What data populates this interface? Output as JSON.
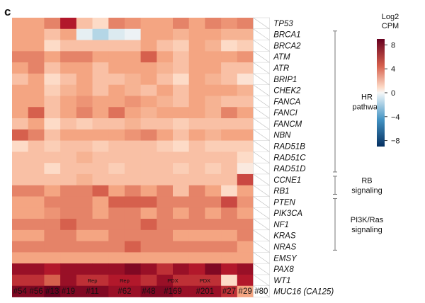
{
  "chart_data": {
    "type": "heatmap",
    "panel_label": "c",
    "genes": [
      "TP53",
      "BRCA1",
      "BRCA2",
      "ATM",
      "ATR",
      "BRIP1",
      "CHEK2",
      "FANCA",
      "FANCI",
      "FANCM",
      "NBN",
      "RAD51B",
      "RAD51C",
      "RAD51D",
      "CCNE1",
      "RB1",
      "PTEN",
      "PIK3CA",
      "NF1",
      "KRAS",
      "NRAS",
      "EMSY",
      "PAX8",
      "WT1",
      "MUC16 (CA125)"
    ],
    "samples": [
      "#54",
      "#56",
      "#13",
      "#19",
      "#11",
      "#11",
      "#62",
      "#62",
      "#48",
      "#169",
      "#169",
      "#201",
      "#201",
      "#27",
      "#29",
      "#80"
    ],
    "sample_labels": [
      "#54",
      "#56",
      "#13",
      "#19",
      "#11",
      "#62",
      "#48",
      "#169",
      "#201",
      "#27",
      "#29",
      "#80"
    ],
    "sample_annotations": [
      "Rep",
      "Rep",
      "PDX",
      "PDX"
    ],
    "groups": [
      {
        "label": "HR pathway",
        "lines": [
          "HR",
          "pathway"
        ],
        "from": "BRCA1",
        "to": "RAD51D"
      },
      {
        "label": "RB signaling",
        "lines": [
          "RB",
          "signaling"
        ],
        "from": "CCNE1",
        "to": "RB1"
      },
      {
        "label": "PI3K/Ras signaling",
        "lines": [
          "PI3K/Ras",
          "signaling"
        ],
        "from": "PTEN",
        "to": "NRAS"
      }
    ],
    "colorbar": {
      "title_lines": [
        "Log2",
        "CPM"
      ],
      "ticks": [
        8,
        4,
        0,
        -4,
        -8
      ],
      "vmin": -9,
      "vmax": 9
    },
    "colors": {
      "high": "#67001f",
      "mid": "#f7f7f7",
      "low": "#053061"
    },
    "values": [
      [
        4,
        4,
        5,
        7.5,
        3,
        2,
        5,
        4.5,
        4,
        4,
        5,
        4,
        5,
        4.5,
        5,
        null
      ],
      [
        4,
        4,
        3,
        4,
        -0.5,
        -2,
        -0.8,
        -0.3,
        4,
        4,
        3.5,
        4,
        4,
        3.5,
        3.5,
        null
      ],
      [
        4,
        4,
        2,
        3,
        3,
        3,
        3,
        3,
        4,
        3,
        2.5,
        4,
        3.5,
        2,
        2.5,
        null
      ],
      [
        5,
        5,
        4,
        5,
        5,
        4,
        4,
        4,
        6,
        4,
        3,
        4,
        4,
        4,
        4.5,
        null
      ],
      [
        4,
        5,
        3,
        4,
        4,
        3,
        4,
        4,
        4,
        3.5,
        3,
        4,
        4,
        3,
        3,
        null
      ],
      [
        3,
        4,
        2,
        3,
        4,
        3,
        3,
        3.5,
        4,
        3,
        2,
        4,
        3.5,
        3,
        1.5,
        null
      ],
      [
        4,
        4,
        2.5,
        3.5,
        4,
        3,
        4,
        3.5,
        3,
        4,
        3,
        4,
        4,
        4,
        3.5,
        null
      ],
      [
        4,
        4,
        3,
        4,
        4.5,
        4,
        4,
        4.5,
        4,
        3.5,
        3,
        4,
        3.5,
        3,
        3,
        null
      ],
      [
        4,
        6,
        3,
        4,
        5,
        4,
        5.5,
        4,
        3.5,
        4,
        4,
        4,
        3.5,
        5,
        4,
        null
      ],
      [
        3,
        4,
        2,
        3,
        2.5,
        3,
        3,
        3.5,
        3,
        3,
        2.5,
        3,
        3,
        3,
        3,
        null
      ],
      [
        6,
        5,
        3,
        4,
        4,
        4,
        4,
        4.5,
        5,
        4,
        3,
        4,
        3.5,
        4,
        4,
        null
      ],
      [
        2,
        3,
        2.5,
        3,
        3,
        2.5,
        3,
        3,
        3,
        2.5,
        2,
        3,
        2.5,
        2.5,
        2.5,
        null
      ],
      [
        3,
        3,
        3,
        3,
        3.5,
        3,
        3,
        3,
        3,
        3,
        3,
        3,
        3,
        3,
        2,
        null
      ],
      [
        3,
        3,
        2,
        3,
        3,
        3,
        2.5,
        3,
        3,
        3,
        2.5,
        3,
        2.5,
        3,
        1,
        null
      ],
      [
        3,
        3,
        3,
        3,
        3.5,
        3,
        3,
        3,
        3,
        3,
        3,
        3,
        3,
        3,
        6.5,
        null
      ],
      [
        5,
        5,
        4,
        5,
        5,
        6,
        4,
        5,
        4,
        5,
        3,
        5,
        4,
        2,
        4,
        null
      ],
      [
        4,
        4,
        5,
        5,
        5,
        4,
        6,
        6,
        6,
        5,
        5,
        5,
        5,
        6.5,
        4.5,
        null
      ],
      [
        4,
        4,
        4.5,
        5,
        5,
        4,
        5,
        5,
        4,
        5,
        4,
        5,
        4,
        5,
        4,
        null
      ],
      [
        5,
        5,
        5,
        6,
        5,
        5,
        5,
        5,
        6,
        5,
        5,
        5,
        5,
        5,
        5,
        null
      ],
      [
        4,
        4,
        5,
        5,
        4,
        4,
        5,
        5,
        5,
        5,
        4,
        4,
        4,
        4,
        5,
        null
      ],
      [
        5,
        5,
        5,
        5,
        5,
        5,
        5,
        6,
        5,
        5,
        5,
        5,
        5,
        5,
        4,
        null
      ],
      [
        4,
        4,
        4,
        4,
        4,
        4,
        4,
        4,
        4,
        4,
        4,
        4,
        4,
        4,
        4,
        null
      ],
      [
        8,
        8,
        7.5,
        8,
        8,
        8,
        8,
        8.5,
        8,
        7,
        8,
        7.5,
        8.5,
        7.5,
        8,
        null
      ],
      [
        7,
        7,
        6,
        8,
        7,
        7,
        7.5,
        7.5,
        7,
        8,
        7,
        7,
        7,
        2,
        7.5,
        null
      ],
      [
        8.5,
        8.5,
        9,
        8.5,
        8.5,
        8.5,
        8,
        8,
        8.5,
        8.5,
        8,
        8,
        8,
        7,
        4,
        null
      ]
    ]
  }
}
